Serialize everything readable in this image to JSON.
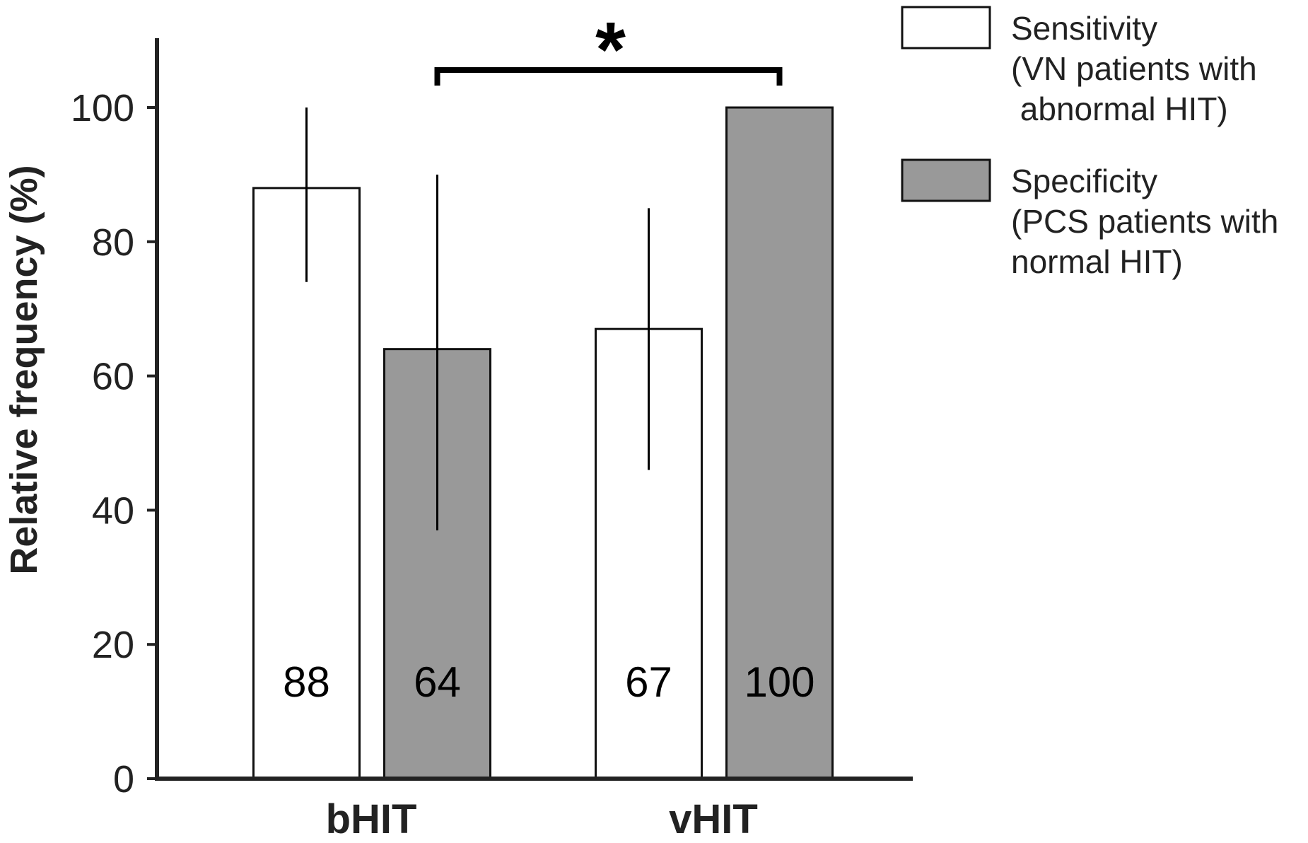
{
  "chart_data": {
    "type": "bar",
    "categories": [
      "bHIT",
      "vHIT"
    ],
    "ylabel": "Relative frequency (%)",
    "xlabel": "",
    "ylim": [
      0,
      110
    ],
    "yticks": [
      0,
      20,
      40,
      60,
      80,
      100
    ],
    "grid": false,
    "legend_position": "top-right",
    "series": [
      {
        "name": "Sensitivity",
        "legend_lines": [
          "Sensitivity",
          "(VN patients with",
          " abnormal HIT)"
        ],
        "color": "#ffffff",
        "values": [
          88,
          67
        ],
        "value_labels": [
          "88",
          "67"
        ],
        "error": [
          [
            74,
            100
          ],
          [
            46,
            85
          ]
        ]
      },
      {
        "name": "Specificity",
        "legend_lines": [
          "Specificity",
          "(PCS patients with",
          "normal HIT)"
        ],
        "color": "#999999",
        "values": [
          64,
          100
        ],
        "value_labels": [
          "64",
          "100"
        ],
        "error": [
          [
            37,
            90
          ],
          [
            100,
            100
          ]
        ]
      }
    ],
    "annotations": [
      {
        "type": "significance",
        "text": "*",
        "from": {
          "category": "bHIT",
          "series": "Specificity"
        },
        "to": {
          "category": "vHIT",
          "series": "Specificity"
        }
      }
    ]
  }
}
